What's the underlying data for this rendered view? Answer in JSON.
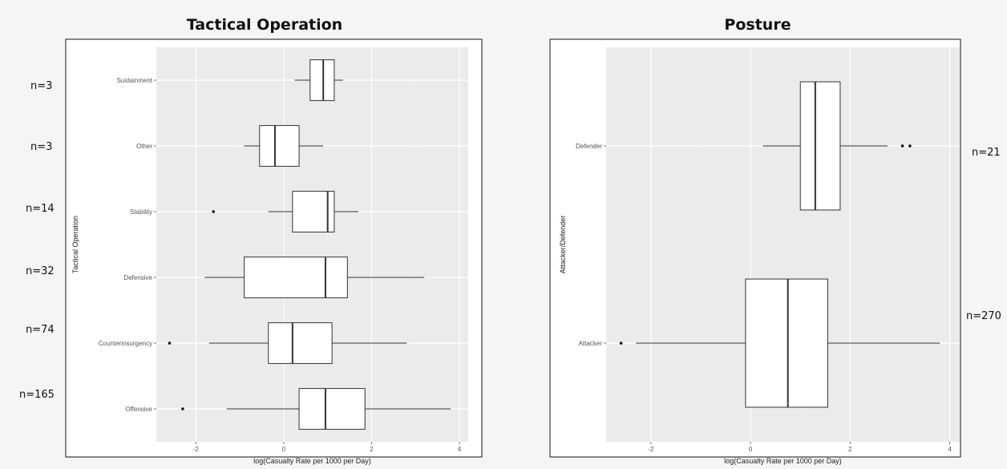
{
  "chart_data": [
    {
      "type": "boxplot",
      "title": "Tactical Operation",
      "xlabel": "log(Casualty Rate per 1000 per Day)",
      "ylabel": "Tactical Operation",
      "xlim": [
        -2.9,
        4.2
      ],
      "xticks": [
        -2,
        0,
        2,
        4
      ],
      "xtick_labels": [
        "-2",
        "0",
        "2",
        "4"
      ],
      "grid": true,
      "categories": [
        "Sustainment",
        "Other",
        "Stability",
        "Defensive",
        "Counterinsurgency",
        "Offensive"
      ],
      "counts": [
        "n=3",
        "n=3",
        "n=14",
        "n=32",
        "n=74",
        "n=165"
      ],
      "boxes": [
        {
          "category": "Sustainment",
          "whisker_low": 0.25,
          "q1": 0.6,
          "median": 0.9,
          "q3": 1.15,
          "whisker_high": 1.35,
          "outliers": []
        },
        {
          "category": "Other",
          "whisker_low": -0.9,
          "q1": -0.55,
          "median": -0.2,
          "q3": 0.35,
          "whisker_high": 0.9,
          "outliers": []
        },
        {
          "category": "Stability",
          "whisker_low": -0.35,
          "q1": 0.2,
          "median": 1.0,
          "q3": 1.15,
          "whisker_high": 1.7,
          "outliers": [
            -1.6
          ]
        },
        {
          "category": "Defensive",
          "whisker_low": -1.8,
          "q1": -0.9,
          "median": 0.95,
          "q3": 1.45,
          "whisker_high": 3.2,
          "outliers": []
        },
        {
          "category": "Counterinsurgency",
          "whisker_low": -1.7,
          "q1": -0.35,
          "median": 0.2,
          "q3": 1.1,
          "whisker_high": 2.8,
          "outliers": [
            -2.6
          ]
        },
        {
          "category": "Offensive",
          "whisker_low": -1.3,
          "q1": 0.35,
          "median": 0.95,
          "q3": 1.85,
          "whisker_high": 3.8,
          "outliers": [
            -2.3
          ]
        }
      ]
    },
    {
      "type": "boxplot",
      "title": "Posture",
      "xlabel": "log(Casualty Rate per 1000 per Day)",
      "ylabel": "Attacker/Defender",
      "xlim": [
        -2.9,
        4.2
      ],
      "xticks": [
        -2,
        0,
        2,
        4
      ],
      "xtick_labels": [
        "-2",
        "0",
        "2",
        "4"
      ],
      "grid": true,
      "categories": [
        "Defender",
        "Attacker"
      ],
      "counts": [
        "n=21",
        "n=270"
      ],
      "boxes": [
        {
          "category": "Defender",
          "whisker_low": 0.25,
          "q1": 1.0,
          "median": 1.3,
          "q3": 1.8,
          "whisker_high": 2.75,
          "outliers": [
            3.05,
            3.2
          ]
        },
        {
          "category": "Attacker",
          "whisker_low": -2.3,
          "q1": -0.1,
          "median": 0.75,
          "q3": 1.55,
          "whisker_high": 3.8,
          "outliers": [
            -2.6
          ]
        }
      ]
    }
  ],
  "colors": {
    "panel": "#ebebeb",
    "grid_major": "#ffffff",
    "grid_minor": "#f4f4f4",
    "box_fill": "#ffffff",
    "line": "#333333",
    "frame": "#111111"
  }
}
